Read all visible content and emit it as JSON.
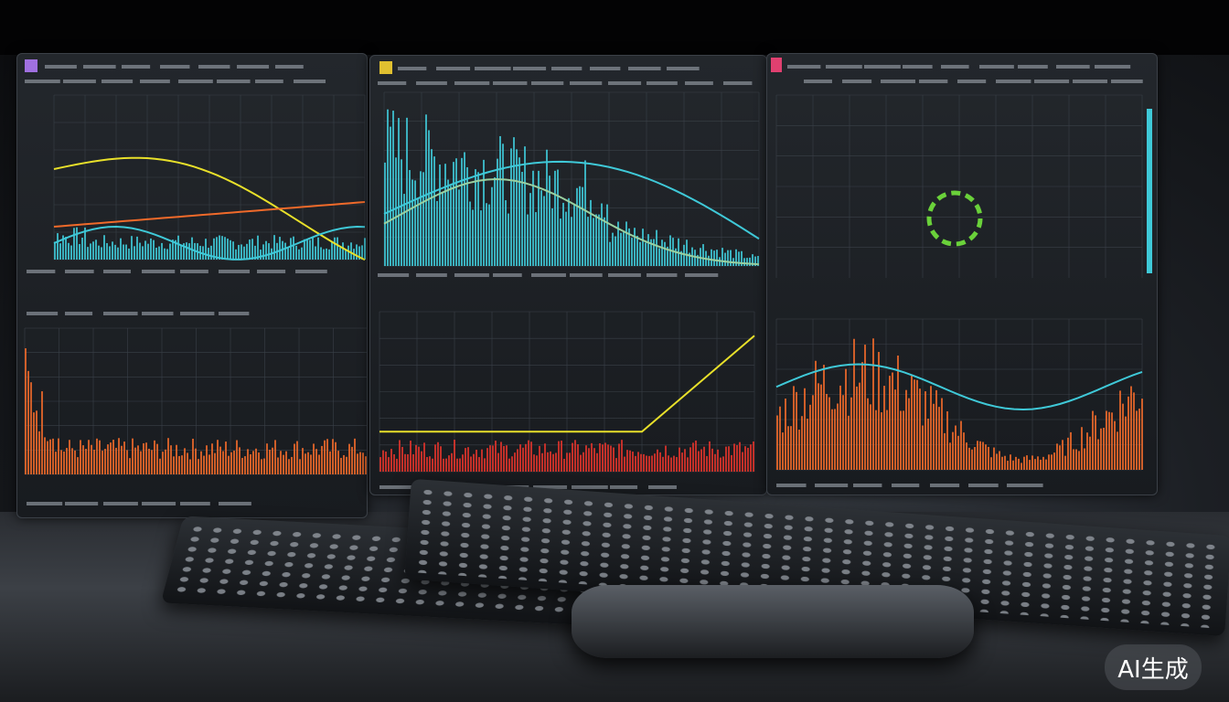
{
  "watermark": "AI生成",
  "colors": {
    "cyan": "#3fc9d8",
    "yellow": "#e8e02a",
    "orange": "#f06a2a",
    "red": "#e0342c",
    "green": "#6ad13a",
    "grid": "#3a4048"
  }
}
